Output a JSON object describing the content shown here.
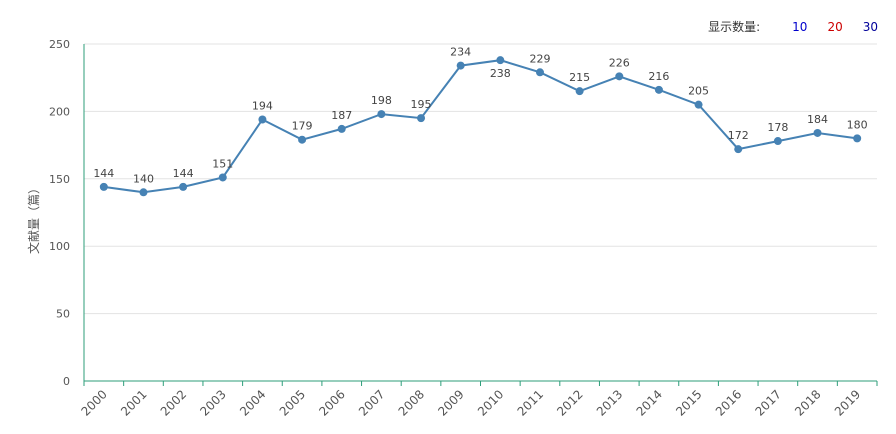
{
  "chart_data": {
    "type": "line",
    "title": "",
    "xlabel": "",
    "ylabel": "文献量（篇）",
    "x": [
      "2000",
      "2001",
      "2002",
      "2003",
      "2004",
      "2005",
      "2006",
      "2007",
      "2008",
      "2009",
      "2010",
      "2011",
      "2012",
      "2013",
      "2014",
      "2015",
      "2016",
      "2017",
      "2018",
      "2019"
    ],
    "series": [
      {
        "values": [
          144,
          140,
          144,
          151,
          194,
          179,
          187,
          198,
          195,
          234,
          238,
          229,
          215,
          226,
          216,
          205,
          172,
          178,
          184,
          180
        ]
      }
    ],
    "ylim": [
      0,
      250
    ],
    "yticks": [
      0,
      50,
      100,
      150,
      200,
      250
    ],
    "grid": true,
    "colors": {
      "line": "#4682b4",
      "axis": "#2e9e7a"
    }
  },
  "count_selector": {
    "label": "显示数量:",
    "options": [
      {
        "label": "10",
        "color": "#0000cc"
      },
      {
        "label": "20",
        "color": "#cc0000"
      },
      {
        "label": "30",
        "color": "#000099"
      }
    ]
  }
}
